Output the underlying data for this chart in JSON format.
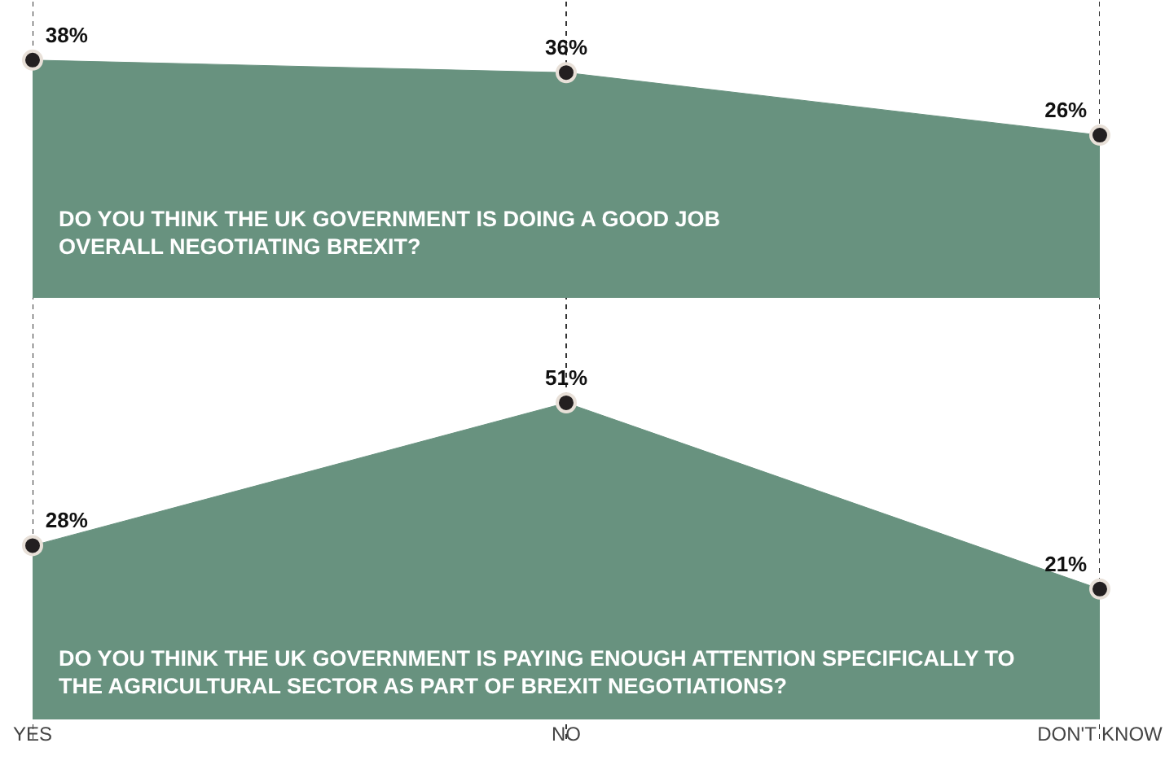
{
  "chart_data": [
    {
      "type": "area",
      "categories": [
        null,
        null,
        null
      ],
      "values": [
        38,
        36,
        26
      ],
      "value_labels": [
        "38%",
        "36%",
        "26%"
      ],
      "color": "#68927f",
      "grid": "x",
      "marker": "circle",
      "tick_labels": false,
      "annotations": [
        "DO YOU THINK THE UK GOVERNMENT IS DOING A GOOD JOB OVERALL NEGOTIATING BREXIT?"
      ]
    },
    {
      "type": "area",
      "categories": [
        "YES",
        "NO",
        "DON'T KNOW"
      ],
      "values": [
        28,
        51,
        21
      ],
      "value_labels": [
        "28%",
        "51%",
        "21%"
      ],
      "color": "#68927f",
      "grid": "x",
      "marker": "circle",
      "tick_labels": "x",
      "annotations": [
        "DO YOU THINK THE UK GOVERNMENT IS PAYING ENOUGH ATTENTION SPECIFICALLY TO THE AGRICULTURAL SECTOR AS PART OF BREXIT NEGOTIATIONS?"
      ]
    }
  ]
}
